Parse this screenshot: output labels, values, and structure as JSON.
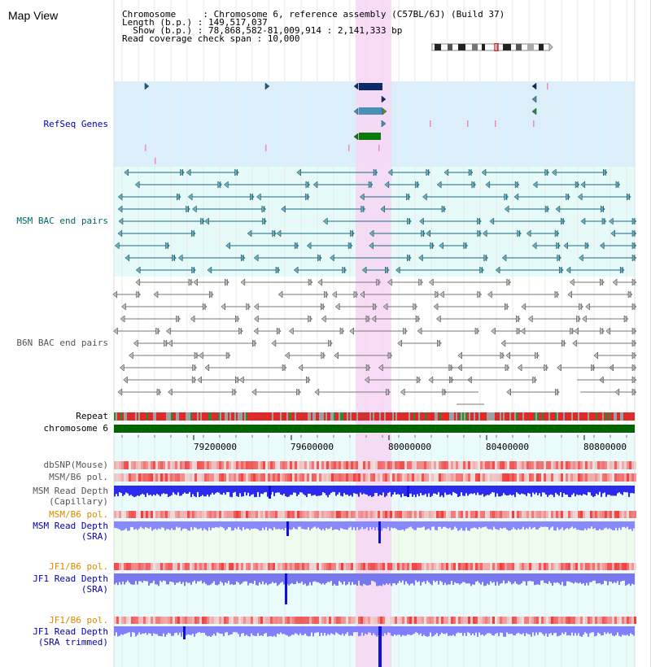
{
  "header": {
    "title": "Map View",
    "info_lines": [
      "Chromosome     : Chromosome 6, reference assembly (C57BL/6J) (Build 37)",
      "Length (b.p.) : 149,517,037",
      "  Show (b.p.) : 78,868,582-81,009,914 : 2,141,333 bp",
      "Read coverage check span : 10,000"
    ]
  },
  "tracks": {
    "refseq": "RefSeq Genes",
    "msm_bac": "MSM BAC end pairs",
    "b6n_bac": "B6N BAC end pairs",
    "repeat": "Repeat",
    "chromosome": "chromosome 6",
    "dbsnp": "dbSNP(Mouse)",
    "msm_b6_pol_1": "MSM/B6 pol.",
    "msm_read_depth_cap_1": "MSM Read Depth",
    "msm_read_depth_cap_2": "(Capillary)",
    "msm_b6_pol_2": "MSM/B6 pol.",
    "msm_read_depth_sra_1": "MSM Read Depth",
    "msm_read_depth_sra_2": "(SRA)",
    "jf1_b6_pol_1": "JF1/B6 pol.",
    "jf1_read_depth_sra_1": "JF1 Read Depth",
    "jf1_read_depth_sra_2": "(SRA)",
    "jf1_b6_pol_2": "JF1/B6 pol.",
    "jf1_read_depth_trim_1": "JF1 Read Depth",
    "jf1_read_depth_trim_2": "(SRA trimmed)"
  },
  "axis": {
    "ticks": [
      "79200000",
      "79600000",
      "80000000",
      "80400000",
      "80800000"
    ]
  },
  "colors": {
    "highlight": "#f7d6f3",
    "refseq_bg": "#dbeffa",
    "bac_bg": "#e6fafa",
    "depth_bg": "#e9fbfa",
    "chromosome": "#006400",
    "depth_blue": "#2a2aee",
    "depth_light": "#8888ff"
  }
}
